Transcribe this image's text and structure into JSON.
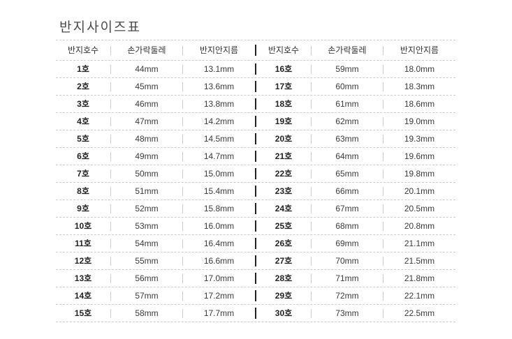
{
  "title": "반지사이즈표",
  "table": {
    "headers": [
      "반지호수",
      "손가락둘레",
      "반지안지름"
    ]
  },
  "chart_data": {
    "type": "table",
    "title": "반지사이즈표",
    "columns": [
      "반지호수",
      "손가락둘레",
      "반지안지름"
    ],
    "layout": "two-column-split",
    "rows": [
      [
        "1호",
        "44mm",
        "13.1mm"
      ],
      [
        "2호",
        "45mm",
        "13.6mm"
      ],
      [
        "3호",
        "46mm",
        "13.8mm"
      ],
      [
        "4호",
        "47mm",
        "14.2mm"
      ],
      [
        "5호",
        "48mm",
        "14.5mm"
      ],
      [
        "6호",
        "49mm",
        "14.7mm"
      ],
      [
        "7호",
        "50mm",
        "15.0mm"
      ],
      [
        "8호",
        "51mm",
        "15.4mm"
      ],
      [
        "9호",
        "52mm",
        "15.8mm"
      ],
      [
        "10호",
        "53mm",
        "16.0mm"
      ],
      [
        "11호",
        "54mm",
        "16.4mm"
      ],
      [
        "12호",
        "55mm",
        "16.6mm"
      ],
      [
        "13호",
        "56mm",
        "17.0mm"
      ],
      [
        "14호",
        "57mm",
        "17.2mm"
      ],
      [
        "15호",
        "58mm",
        "17.7mm"
      ],
      [
        "16호",
        "59mm",
        "18.0mm"
      ],
      [
        "17호",
        "60mm",
        "18.3mm"
      ],
      [
        "18호",
        "61mm",
        "18.6mm"
      ],
      [
        "19호",
        "62mm",
        "19.0mm"
      ],
      [
        "20호",
        "63mm",
        "19.3mm"
      ],
      [
        "21호",
        "64mm",
        "19.6mm"
      ],
      [
        "22호",
        "65mm",
        "19.8mm"
      ],
      [
        "23호",
        "66mm",
        "20.1mm"
      ],
      [
        "24호",
        "67mm",
        "20.5mm"
      ],
      [
        "25호",
        "68mm",
        "20.8mm"
      ],
      [
        "26호",
        "69mm",
        "21.1mm"
      ],
      [
        "27호",
        "70mm",
        "21.5mm"
      ],
      [
        "28호",
        "71mm",
        "21.8mm"
      ],
      [
        "29호",
        "72mm",
        "22.1mm"
      ],
      [
        "30호",
        "73mm",
        "22.5mm"
      ]
    ],
    "colors": {
      "text": "#3a3a3a",
      "size_text": "#222222",
      "dashed_line": "#cccccc",
      "column_separator": "#cccccc",
      "half_divider": "#222222",
      "background": "#ffffff"
    }
  }
}
